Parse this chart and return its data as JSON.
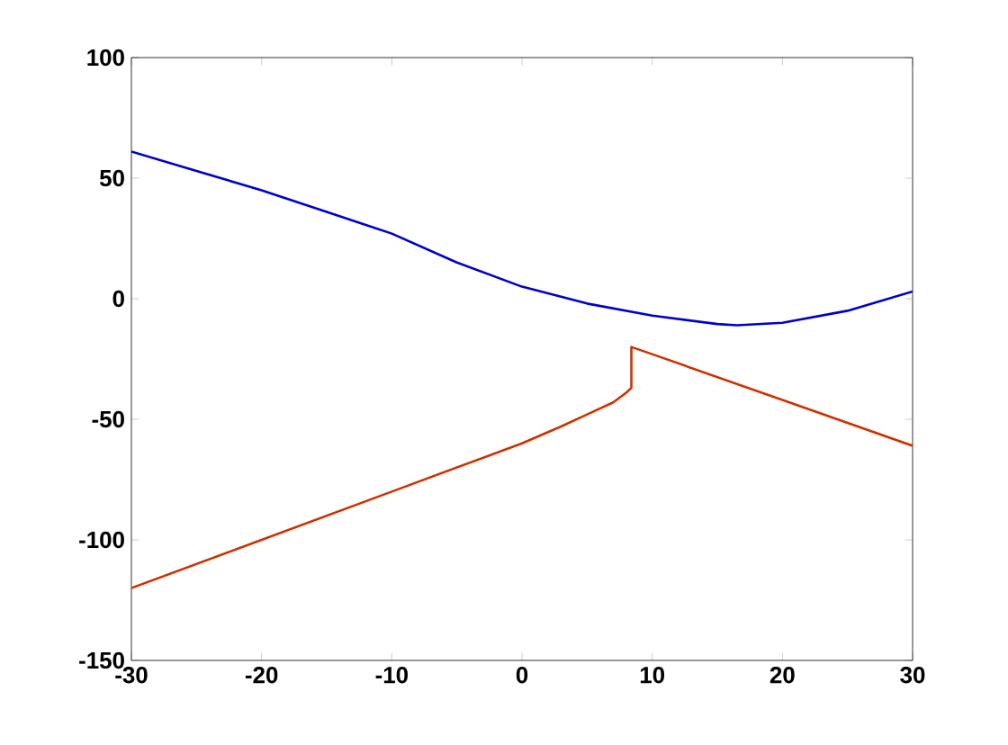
{
  "chart_data": {
    "type": "line",
    "xlim": [
      -30,
      30
    ],
    "ylim": [
      -150,
      100
    ],
    "xticks": [
      -30,
      -20,
      -10,
      0,
      10,
      20,
      30
    ],
    "yticks": [
      -150,
      -100,
      -50,
      0,
      50,
      100
    ],
    "grid": false,
    "marker": "none",
    "line_style": "solid",
    "series": [
      {
        "color": "#0000cc",
        "x": [
          -30,
          -25,
          -20,
          -15,
          -10,
          -5,
          0,
          5,
          10,
          15,
          16.5,
          20,
          25,
          30
        ],
        "values": [
          61,
          53,
          45,
          36,
          27,
          15,
          5,
          -2,
          -7,
          -10.5,
          -11,
          -10,
          -5,
          3
        ]
      },
      {
        "color": "#cc3300",
        "x": [
          -30,
          -20,
          -10,
          0,
          3,
          5,
          7,
          8,
          8.4,
          8.4,
          10,
          20,
          30
        ],
        "values": [
          -120,
          -100,
          -80,
          -60,
          -53,
          -48,
          -43,
          -39,
          -37,
          -20,
          -23,
          -42,
          -61
        ]
      }
    ]
  }
}
